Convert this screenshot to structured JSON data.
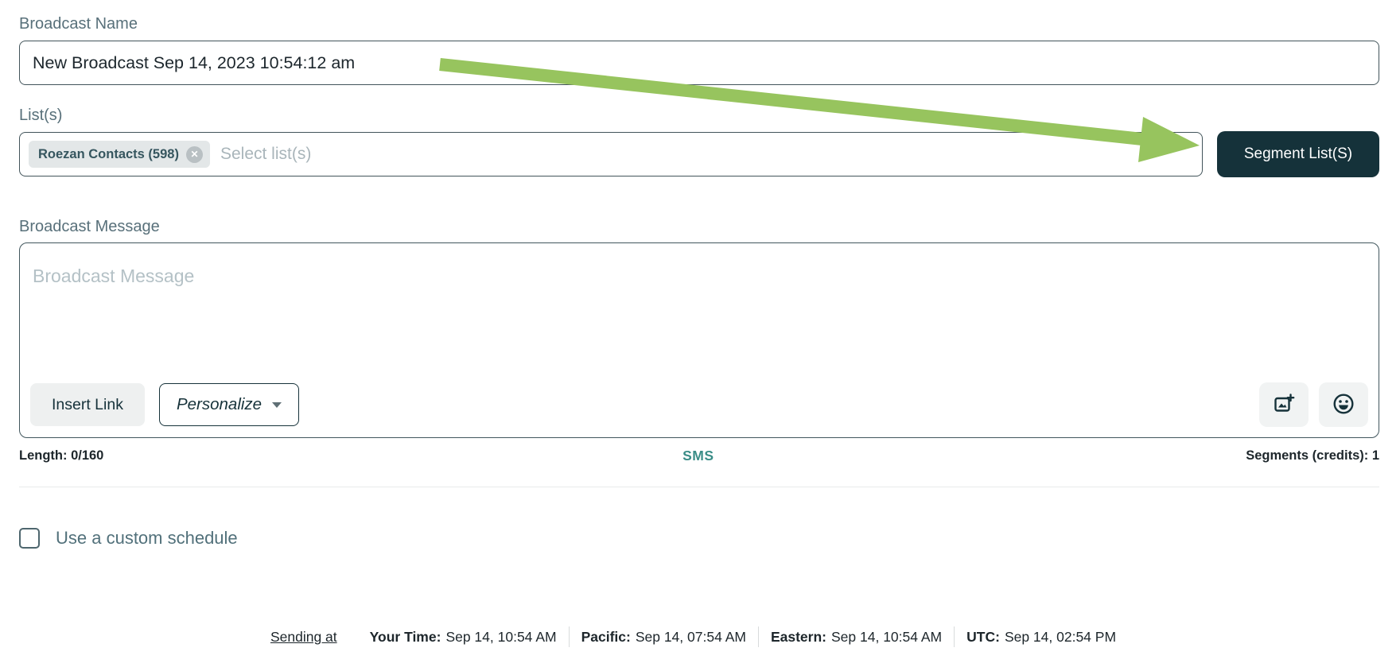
{
  "broadcast_name": {
    "label": "Broadcast Name",
    "value": "New Broadcast Sep 14, 2023 10:54:12 am"
  },
  "lists": {
    "label": "List(s)",
    "chip": {
      "text": "Roezan Contacts (598)",
      "close_glyph": "✕"
    },
    "placeholder": "Select list(s)",
    "segment_button_label": "Segment List(S)"
  },
  "message": {
    "label": "Broadcast Message",
    "placeholder": "Broadcast Message",
    "insert_link_label": "Insert Link",
    "personalize_label": "Personalize"
  },
  "stats": {
    "length": "Length: 0/160",
    "channel": "SMS",
    "segments": "Segments (credits): 1"
  },
  "schedule": {
    "label": "Use a custom schedule",
    "checked": false
  },
  "footer": {
    "sending_at": "Sending at",
    "times": [
      {
        "label": "Your Time:",
        "value": "Sep 14, 10:54 AM"
      },
      {
        "label": "Pacific:",
        "value": "Sep 14, 07:54 AM"
      },
      {
        "label": "Eastern:",
        "value": "Sep 14, 10:54 AM"
      },
      {
        "label": "UTC:",
        "value": "Sep 14, 02:54 PM"
      }
    ]
  },
  "icons": {
    "chip_close": "close-icon",
    "personalize_caret": "caret-down-icon",
    "add_image": "add-image-icon",
    "emoji": "emoji-smiley-icon"
  },
  "colors": {
    "arrow_green": "#97c45e",
    "dark_teal": "#15323a",
    "sms_teal": "#3a8d87",
    "label_slate": "#58707a"
  }
}
